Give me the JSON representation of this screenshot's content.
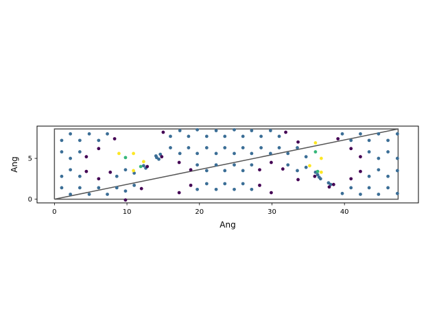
{
  "chart_data": {
    "type": "scatter",
    "title": "",
    "xlabel": "Ang",
    "ylabel": "Ang",
    "xlim": [
      -2.4,
      50.2
    ],
    "ylim": [
      -0.45,
      8.95
    ],
    "xticks": [
      0,
      10,
      20,
      30,
      40
    ],
    "yticks": [
      0,
      5
    ],
    "xtick_labels": [
      "0",
      "10",
      "20",
      "30",
      "40"
    ],
    "ytick_labels": [
      "0",
      "5"
    ],
    "grid": false,
    "cell_outline": {
      "x": [
        0,
        0,
        47.4,
        47.4,
        0,
        47.4
      ],
      "y": [
        0,
        8.6,
        8.6,
        0,
        0,
        8.6
      ]
    },
    "colors": {
      "blue": "#3b6e96",
      "purple": "#440154",
      "green": "#35b779",
      "yellow": "#fde725",
      "outline": "#555555"
    },
    "series": [
      {
        "color_key": "blue",
        "points": [
          [
            1.0,
            7.2
          ],
          [
            1.0,
            5.8
          ],
          [
            1.0,
            2.8
          ],
          [
            1.0,
            1.4
          ],
          [
            2.2,
            8.0
          ],
          [
            2.2,
            5.0
          ],
          [
            2.2,
            3.6
          ],
          [
            2.2,
            0.6
          ],
          [
            3.5,
            7.2
          ],
          [
            3.5,
            5.8
          ],
          [
            3.5,
            2.8
          ],
          [
            3.5,
            1.4
          ],
          [
            4.8,
            8.0
          ],
          [
            4.8,
            0.6
          ],
          [
            6.1,
            7.2
          ],
          [
            6.1,
            1.4
          ],
          [
            7.3,
            8.0
          ],
          [
            7.3,
            0.6
          ],
          [
            8.6,
            2.8
          ],
          [
            8.6,
            1.4
          ],
          [
            9.8,
            3.6
          ],
          [
            9.8,
            1.0
          ],
          [
            11.0,
            1.7
          ],
          [
            11.0,
            3.2
          ],
          [
            12.3,
            4.1
          ],
          [
            12.6,
            3.8
          ],
          [
            14.1,
            5.1
          ],
          [
            14.4,
            4.9
          ],
          [
            14.0,
            5.3
          ],
          [
            14.6,
            5.5
          ],
          [
            16.0,
            7.7
          ],
          [
            16.0,
            6.3
          ],
          [
            17.3,
            8.4
          ],
          [
            17.3,
            5.6
          ],
          [
            18.5,
            7.7
          ],
          [
            18.5,
            6.3
          ],
          [
            19.7,
            8.5
          ],
          [
            19.7,
            5.6
          ],
          [
            19.7,
            4.2
          ],
          [
            19.7,
            1.2
          ],
          [
            21.0,
            7.7
          ],
          [
            21.0,
            6.3
          ],
          [
            21.0,
            3.5
          ],
          [
            21.0,
            1.9
          ],
          [
            22.3,
            8.4
          ],
          [
            22.3,
            5.6
          ],
          [
            22.3,
            4.2
          ],
          [
            22.3,
            1.2
          ],
          [
            23.5,
            7.7
          ],
          [
            23.5,
            6.3
          ],
          [
            23.5,
            3.5
          ],
          [
            23.5,
            1.9
          ],
          [
            24.8,
            8.5
          ],
          [
            24.8,
            5.6
          ],
          [
            24.8,
            4.2
          ],
          [
            24.8,
            1.2
          ],
          [
            26.0,
            7.7
          ],
          [
            26.0,
            6.3
          ],
          [
            26.0,
            3.5
          ],
          [
            26.0,
            1.9
          ],
          [
            27.2,
            8.4
          ],
          [
            27.2,
            5.6
          ],
          [
            27.2,
            4.2
          ],
          [
            27.2,
            1.2
          ],
          [
            28.5,
            7.7
          ],
          [
            28.5,
            6.3
          ],
          [
            29.8,
            8.4
          ],
          [
            29.8,
            5.6
          ],
          [
            31.0,
            7.7
          ],
          [
            31.0,
            6.3
          ],
          [
            32.2,
            5.6
          ],
          [
            32.2,
            4.2
          ],
          [
            33.5,
            6.3
          ],
          [
            33.5,
            3.5
          ],
          [
            34.7,
            5.2
          ],
          [
            34.7,
            3.9
          ],
          [
            36.0,
            3.3
          ],
          [
            36.3,
            3.0
          ],
          [
            36.5,
            2.7
          ],
          [
            36.7,
            2.5
          ],
          [
            37.8,
            2.0
          ],
          [
            38.1,
            1.8
          ],
          [
            39.7,
            8.0
          ],
          [
            39.7,
            0.7
          ],
          [
            40.9,
            7.2
          ],
          [
            40.9,
            1.4
          ],
          [
            42.2,
            8.0
          ],
          [
            42.2,
            0.6
          ],
          [
            43.4,
            7.2
          ],
          [
            43.4,
            5.8
          ],
          [
            43.4,
            2.8
          ],
          [
            43.4,
            1.4
          ],
          [
            44.7,
            8.0
          ],
          [
            44.7,
            5.0
          ],
          [
            44.7,
            3.6
          ],
          [
            44.7,
            0.6
          ],
          [
            46.0,
            7.2
          ],
          [
            46.0,
            5.8
          ],
          [
            46.0,
            2.8
          ],
          [
            46.0,
            1.4
          ],
          [
            47.3,
            8.0
          ],
          [
            47.3,
            5.0
          ],
          [
            47.3,
            3.5
          ],
          [
            47.3,
            0.7
          ]
        ]
      },
      {
        "color_key": "purple",
        "points": [
          [
            4.4,
            5.2
          ],
          [
            4.4,
            3.4
          ],
          [
            6.1,
            6.2
          ],
          [
            6.1,
            2.5
          ],
          [
            7.7,
            3.3
          ],
          [
            8.3,
            7.4
          ],
          [
            9.8,
            -0.1
          ],
          [
            12.0,
            1.3
          ],
          [
            12.8,
            4.0
          ],
          [
            14.8,
            5.2
          ],
          [
            15.0,
            8.2
          ],
          [
            17.2,
            4.5
          ],
          [
            17.2,
            0.8
          ],
          [
            18.8,
            3.6
          ],
          [
            18.8,
            1.7
          ],
          [
            28.3,
            3.6
          ],
          [
            28.3,
            1.7
          ],
          [
            29.9,
            4.5
          ],
          [
            29.9,
            0.8
          ],
          [
            31.5,
            3.7
          ],
          [
            31.9,
            8.2
          ],
          [
            33.6,
            7.0
          ],
          [
            33.6,
            2.4
          ],
          [
            35.9,
            2.8
          ],
          [
            37.9,
            1.5
          ],
          [
            38.5,
            1.8
          ],
          [
            39.1,
            7.4
          ],
          [
            40.9,
            6.2
          ],
          [
            40.9,
            2.5
          ],
          [
            42.2,
            5.2
          ],
          [
            42.2,
            3.4
          ]
        ]
      },
      {
        "color_key": "green",
        "points": [
          [
            9.8,
            5.1
          ],
          [
            11.9,
            4.0
          ],
          [
            36.0,
            5.8
          ],
          [
            36.3,
            3.4
          ]
        ]
      },
      {
        "color_key": "yellow",
        "points": [
          [
            8.9,
            5.6
          ],
          [
            10.9,
            5.6
          ],
          [
            10.9,
            3.5
          ],
          [
            12.3,
            4.6
          ],
          [
            35.2,
            4.1
          ],
          [
            36.0,
            6.9
          ],
          [
            36.8,
            5.0
          ],
          [
            36.8,
            3.3
          ]
        ]
      }
    ]
  }
}
